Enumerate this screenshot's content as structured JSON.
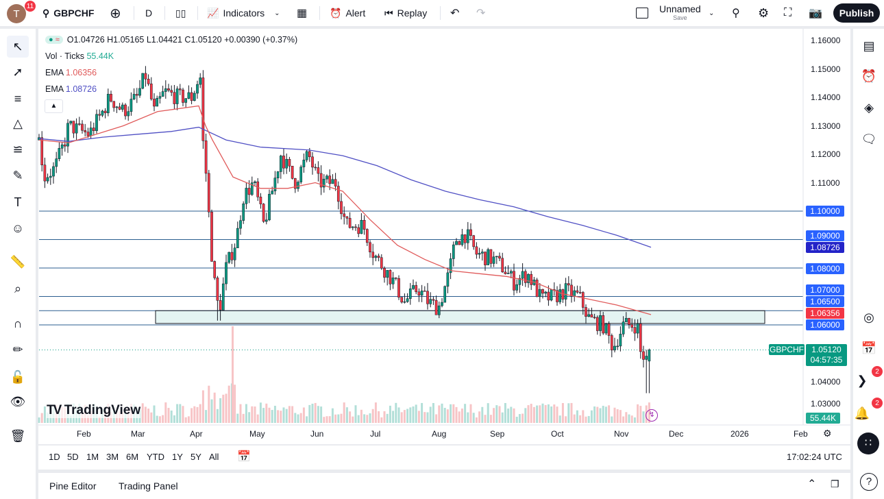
{
  "header": {
    "avatar_letter": "T",
    "avatar_badge": "11",
    "symbol": "GBPCHF",
    "interval": "D",
    "indicators": "Indicators",
    "alert": "Alert",
    "replay": "Replay",
    "layout_name": "Unnamed",
    "layout_save": "Save",
    "publish": "Publish"
  },
  "legend": {
    "ohlc": "O1.04726 H1.05165 L1.04421 C1.05120 +0.00390 (+0.37%)",
    "vol_label": "Vol · Ticks",
    "vol_value": "55.44K",
    "ema1_label": "EMA",
    "ema1_value": "1.06356",
    "ema2_label": "EMA",
    "ema2_value": "1.08726"
  },
  "price_axis": {
    "ticks": [
      "1.16000",
      "1.15000",
      "1.14000",
      "1.13000",
      "1.12000",
      "1.11000",
      "1.04000",
      "1.03000"
    ],
    "line_labels": [
      "1.10000",
      "1.09000",
      "1.08000",
      "1.07000",
      "1.06500",
      "1.06000"
    ],
    "ema_slow_label": "1.08726",
    "ema_fast_label": "1.06356",
    "symbol_tag": "GBPCHF",
    "last_price": "1.05120",
    "countdown": "04:57:35",
    "volume_label": "55.44K"
  },
  "time_axis": [
    "Feb",
    "Mar",
    "Apr",
    "May",
    "Jun",
    "Jul",
    "Aug",
    "Sep",
    "Oct",
    "Nov",
    "Dec",
    "2026",
    "Feb"
  ],
  "range_buttons": [
    "1D",
    "5D",
    "1M",
    "3M",
    "6M",
    "YTD",
    "1Y",
    "5Y",
    "All"
  ],
  "clock": "17:02:24 UTC",
  "footer": {
    "pine_editor": "Pine Editor",
    "trading_panel": "Trading Panel"
  },
  "logo": "TradingView",
  "badges": {
    "ideas": "2",
    "alerts": "2"
  },
  "colors": {
    "up": "#089981",
    "down": "#f23645",
    "ema_fast": "#e05a5a",
    "ema_slow": "#4f4fc4",
    "hline": "#2a5d8f",
    "label_blue": "#2962ff",
    "zone": "#d8f0ec"
  },
  "chart_data": {
    "type": "candlestick",
    "symbol": "GBPCHF",
    "interval": "D",
    "horizontal_levels": [
      1.1,
      1.09,
      1.08,
      1.07,
      1.065,
      1.06
    ],
    "zone": [
      1.0605,
      1.065
    ],
    "last": {
      "open": 1.04726,
      "high": 1.05165,
      "low": 1.04421,
      "close": 1.0512
    },
    "ema_fast_last": 1.06356,
    "ema_slow_last": 1.08726
  }
}
